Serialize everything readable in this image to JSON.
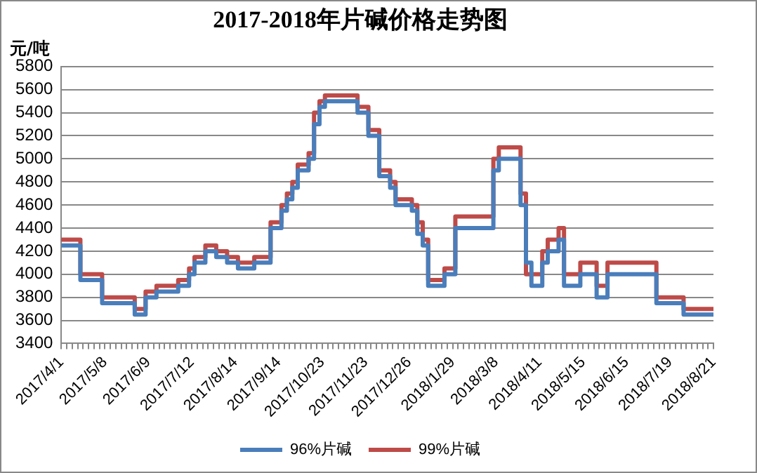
{
  "chart_data": {
    "type": "step",
    "title": "2017-2018年片碱价格走势图",
    "ylabel": "元/吨",
    "categories": [
      "2017/4/1",
      null,
      null,
      null,
      null,
      null,
      null,
      null,
      "2017/5/8",
      null,
      null,
      null,
      null,
      null,
      null,
      null,
      "2017/6/9",
      null,
      null,
      null,
      null,
      null,
      null,
      null,
      "2017/7/12",
      null,
      null,
      null,
      null,
      null,
      null,
      null,
      "2017/8/14",
      null,
      null,
      null,
      null,
      null,
      null,
      null,
      "2017/9/14",
      null,
      null,
      null,
      null,
      null,
      null,
      null,
      "2017/10/23",
      null,
      null,
      null,
      null,
      null,
      null,
      null,
      "2017/11/23",
      null,
      null,
      null,
      null,
      null,
      null,
      null,
      "2017/12/26",
      null,
      null,
      null,
      null,
      null,
      null,
      null,
      "2018/1/29",
      null,
      null,
      null,
      null,
      null,
      null,
      null,
      "2018/3/8",
      null,
      null,
      null,
      null,
      null,
      null,
      null,
      "2018/4/11",
      null,
      null,
      null,
      null,
      null,
      null,
      null,
      "2018/5/15",
      null,
      null,
      null,
      null,
      null,
      null,
      null,
      "2018/6/15",
      null,
      null,
      null,
      null,
      null,
      null,
      null,
      "2018/7/19",
      null,
      null,
      null,
      null,
      null,
      null,
      null,
      "2018/8/21"
    ],
    "series": [
      {
        "name": "96%片碱",
        "color": "#4a7ebb",
        "values": [
          4250,
          4250,
          4250,
          4250,
          3950,
          3950,
          3950,
          3950,
          3750,
          3750,
          3750,
          3750,
          3750,
          3750,
          3650,
          3650,
          3800,
          3800,
          3850,
          3850,
          3850,
          3850,
          3900,
          3900,
          4000,
          4100,
          4100,
          4200,
          4200,
          4150,
          4150,
          4100,
          4100,
          4050,
          4050,
          4050,
          4100,
          4100,
          4100,
          4400,
          4400,
          4550,
          4650,
          4750,
          4900,
          4900,
          5000,
          5300,
          5450,
          5500,
          5500,
          5500,
          5500,
          5500,
          5500,
          5400,
          5400,
          5200,
          5200,
          4850,
          4850,
          4750,
          4600,
          4600,
          4600,
          4550,
          4350,
          4250,
          3900,
          3900,
          3900,
          4000,
          4000,
          4400,
          4400,
          4400,
          4400,
          4400,
          4400,
          4400,
          4900,
          5000,
          5000,
          5000,
          5000,
          4600,
          4100,
          3900,
          3900,
          4100,
          4200,
          4200,
          4300,
          3900,
          3900,
          3900,
          4000,
          4000,
          4000,
          3800,
          3800,
          4000,
          4000,
          4000,
          4000,
          4000,
          4000,
          4000,
          4000,
          4000,
          3750,
          3750,
          3750,
          3750,
          3750,
          3650,
          3650,
          3650,
          3650,
          3650,
          3650
        ]
      },
      {
        "name": "99%片碱",
        "color": "#be4b48",
        "values": [
          4300,
          4300,
          4300,
          4300,
          4000,
          4000,
          4000,
          4000,
          3800,
          3800,
          3800,
          3800,
          3800,
          3800,
          3700,
          3700,
          3850,
          3850,
          3900,
          3900,
          3900,
          3900,
          3950,
          3950,
          4050,
          4150,
          4150,
          4250,
          4250,
          4200,
          4200,
          4150,
          4150,
          4100,
          4100,
          4100,
          4150,
          4150,
          4150,
          4450,
          4450,
          4600,
          4700,
          4800,
          4950,
          4950,
          5050,
          5400,
          5500,
          5550,
          5550,
          5550,
          5550,
          5550,
          5550,
          5450,
          5450,
          5250,
          5250,
          4900,
          4900,
          4800,
          4650,
          4650,
          4650,
          4600,
          4450,
          4300,
          3950,
          3950,
          3950,
          4050,
          4050,
          4500,
          4500,
          4500,
          4500,
          4500,
          4500,
          4500,
          5000,
          5100,
          5100,
          5100,
          5100,
          4700,
          4000,
          4000,
          4000,
          4200,
          4300,
          4300,
          4400,
          4000,
          4000,
          4000,
          4100,
          4100,
          4100,
          3900,
          3900,
          4100,
          4100,
          4100,
          4100,
          4100,
          4100,
          4100,
          4100,
          4100,
          3800,
          3800,
          3800,
          3800,
          3800,
          3700,
          3700,
          3700,
          3700,
          3700,
          3700
        ]
      }
    ],
    "ylim": [
      3400,
      5800
    ],
    "yticks": [
      3400,
      3600,
      3800,
      4000,
      4200,
      4400,
      4600,
      4800,
      5000,
      5200,
      5400,
      5600,
      5800
    ],
    "grid": "y",
    "legend": "bottom",
    "line_style": "solid",
    "marker": "none"
  }
}
